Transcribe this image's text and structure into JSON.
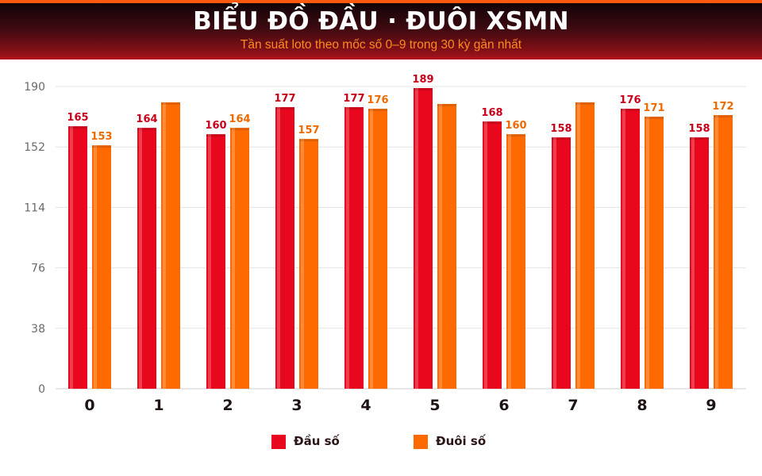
{
  "title": "BIỂU ĐỒ ĐẦU · ĐUÔI XSMN",
  "subtitle": "Tần suất loto theo mốc số 0–9 trong 30 kỳ gần nhất",
  "colors": {
    "dau": "#e8071d",
    "duoi": "#ff6a00",
    "dau_label": "#c8001a",
    "duoi_label": "#ee6a00"
  },
  "legend": {
    "dau": "Đầu số",
    "duoi": "Đuôi số"
  },
  "chart_data": {
    "type": "bar",
    "categories": [
      "0",
      "1",
      "2",
      "3",
      "4",
      "5",
      "6",
      "7",
      "8",
      "9"
    ],
    "ylim": [
      0,
      190
    ],
    "yticks": [
      0,
      38,
      76,
      114,
      152,
      190
    ],
    "grid": true,
    "legend_position": "bottom",
    "series": [
      {
        "name": "Đầu số",
        "values": [
          165,
          164,
          160,
          177,
          177,
          189,
          168,
          158,
          176,
          158
        ],
        "labels": [
          "165",
          "164",
          "160",
          "177",
          "177",
          "189",
          "168",
          "158",
          "176",
          "158"
        ]
      },
      {
        "name": "Đuôi số",
        "values": [
          153,
          180,
          164,
          157,
          176,
          179,
          160,
          180,
          171,
          172
        ],
        "labels": [
          "153",
          "",
          "164",
          "157",
          "176",
          "",
          "160",
          "",
          "171",
          "172"
        ]
      }
    ]
  }
}
